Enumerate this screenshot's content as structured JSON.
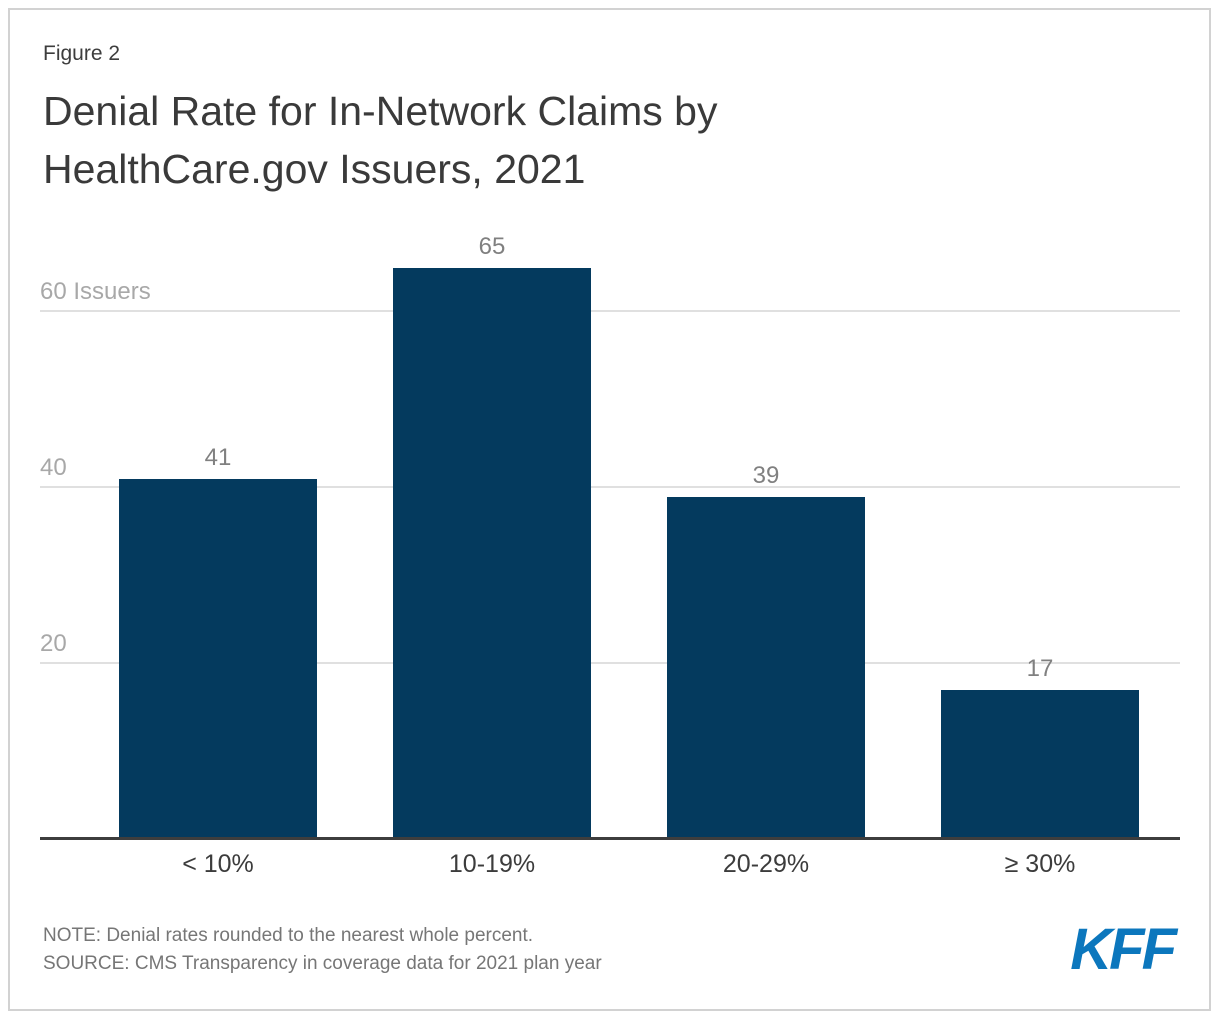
{
  "figure_label": "Figure 2",
  "title": "Denial Rate for In-Network Claims by HealthCare.gov Issuers, 2021",
  "chart_data": {
    "type": "bar",
    "categories": [
      "< 10%",
      "10-19%",
      "20-29%",
      "≥ 30%"
    ],
    "values": [
      41,
      65,
      39,
      17
    ],
    "title": "Denial Rate for In-Network Claims by HealthCare.gov Issuers, 2021",
    "xlabel": "",
    "ylabel": "Issuers",
    "ylim": [
      0,
      70
    ],
    "yticks": [
      {
        "value": 20,
        "label": "20"
      },
      {
        "value": 40,
        "label": "40"
      },
      {
        "value": 60,
        "label": "60 Issuers"
      }
    ],
    "grid": true,
    "legend": false,
    "bar_color": "#043a5e",
    "value_label_color": "#808080",
    "tick_label_color": "#a8a8a8",
    "gridline_color": "#e0e0e0",
    "axis_color": "#3d3d3d"
  },
  "footer": {
    "note": "NOTE: Denial rates rounded to the nearest whole percent.",
    "source": "SOURCE: CMS Transparency in coverage data for 2021 plan year",
    "logo_text": "KFF",
    "logo_color": "#0c77bd"
  }
}
